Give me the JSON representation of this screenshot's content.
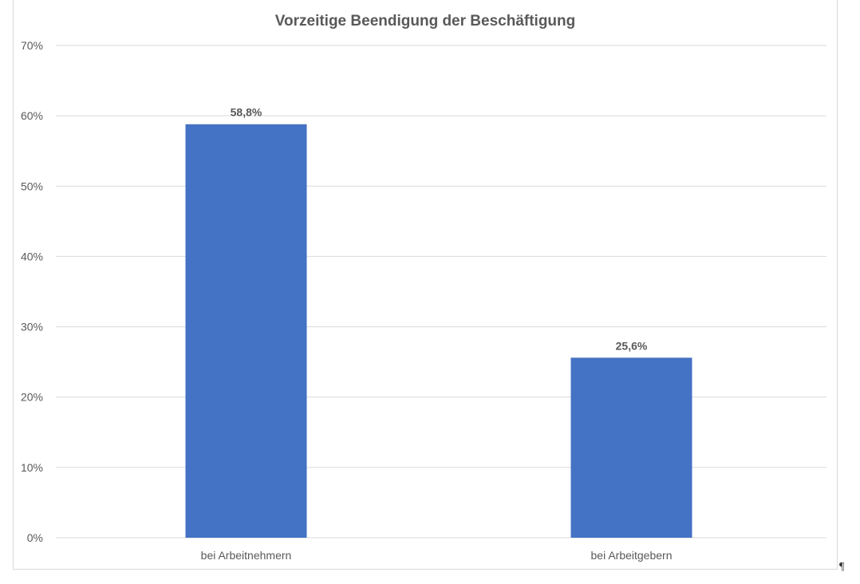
{
  "chart_data": {
    "type": "bar",
    "title": "Vorzeitige Beendigung der Beschäftigung",
    "categories": [
      "bei Arbeitnehmern",
      "bei Arbeitgebern"
    ],
    "values": [
      58.8,
      25.6
    ],
    "data_labels": [
      "58,8%",
      "25,6%"
    ],
    "ylim": [
      0,
      70
    ],
    "yticks": [
      0,
      10,
      20,
      30,
      40,
      50,
      60,
      70
    ],
    "ytick_labels": [
      "0%",
      "10%",
      "20%",
      "30%",
      "40%",
      "50%",
      "60%",
      "70%"
    ],
    "xlabel": "",
    "ylabel": "",
    "grid": true,
    "legend": "none",
    "bar_color": "#4472c4"
  },
  "document": {
    "paragraph_mark": "¶"
  }
}
